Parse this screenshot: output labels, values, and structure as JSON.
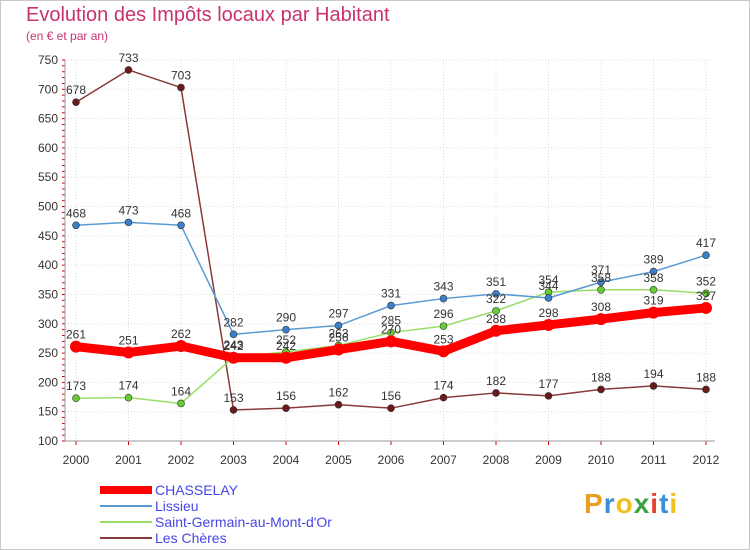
{
  "title": "Evolution des Impôts locaux par Habitant",
  "subtitle": "(en € et par an)",
  "logo": {
    "text": "Proxiti",
    "colors": [
      "#e8a020",
      "#3a8fd8",
      "#f0c020",
      "#3aa040",
      "#e84030",
      "#3a8fd8",
      "#f0c020"
    ]
  },
  "chart_data": {
    "type": "line",
    "title": "Evolution des Impôts locaux par Habitant",
    "subtitle": "(en € et par an)",
    "xlabel": "",
    "ylabel": "",
    "x": [
      "2000",
      "2001",
      "2002",
      "2003",
      "2004",
      "2005",
      "2006",
      "2007",
      "2008",
      "2009",
      "2010",
      "2011",
      "2012"
    ],
    "ylim": [
      100,
      750
    ],
    "yticks": [
      100,
      150,
      200,
      250,
      300,
      350,
      400,
      450,
      500,
      550,
      600,
      650,
      700,
      750
    ],
    "grid": true,
    "legend_position": "bottom-left",
    "series": [
      {
        "name": "CHASSELAY",
        "color": "#ff0000",
        "marker": "#ff0000",
        "values": [
          261,
          251,
          262,
          242,
          242,
          256,
          270,
          253,
          288,
          298,
          308,
          319,
          327
        ],
        "labels": [
          "261",
          "251",
          "262",
          "242",
          "242",
          "256",
          "270",
          "253",
          "288",
          "298",
          "308",
          "319",
          "327"
        ]
      },
      {
        "name": "Lissieu",
        "color": "#5b9bd5",
        "marker": "#3a7fc8",
        "values": [
          468,
          473,
          468,
          282,
          290,
          297,
          331,
          343,
          351,
          344,
          371,
          389,
          417
        ],
        "labels": [
          "468",
          "473",
          "468",
          "282",
          "290",
          "297",
          "331",
          "343",
          "351",
          "344",
          "371",
          "389",
          "417"
        ]
      },
      {
        "name": "Saint-Germain-au-Mont-d'Or",
        "color": "#99dd66",
        "marker": "#66cc33",
        "values": [
          173,
          174,
          164,
          243,
          252,
          263,
          285,
          296,
          322,
          354,
          358,
          358,
          352
        ],
        "labels": [
          "173",
          "174",
          "164",
          "243",
          "252",
          "263",
          "285",
          "296",
          "322",
          "354",
          "358",
          "358",
          "352"
        ]
      },
      {
        "name": "Les Chères",
        "color": "#8b3a3a",
        "marker": "#6b1a1a",
        "values": [
          678,
          733,
          703,
          153,
          156,
          162,
          156,
          174,
          182,
          177,
          188,
          194,
          188
        ],
        "labels": [
          "678",
          "733",
          "703",
          "153",
          "156",
          "162",
          "156",
          "174",
          "182",
          "177",
          "188",
          "194",
          "188"
        ]
      }
    ]
  }
}
